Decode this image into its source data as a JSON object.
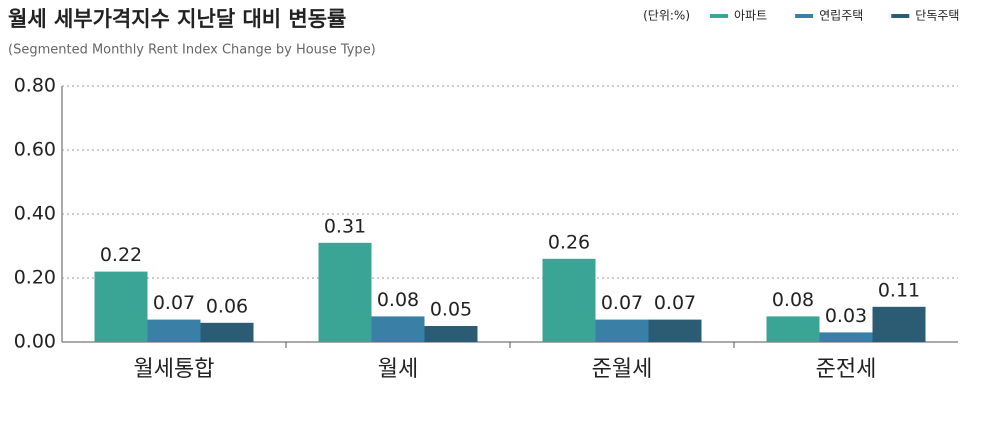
{
  "chart_data": {
    "type": "bar",
    "title": "월세 세부가격지수 지난달 대비 변동률",
    "subtitle": "(Segmented Monthly Rent Index Change by House Type)",
    "unit_label": "(단위:%)",
    "categories": [
      "월세통합",
      "월세",
      "준월세",
      "준전세"
    ],
    "series": [
      {
        "name": "아파트",
        "color": "#3aa594",
        "values": [
          0.22,
          0.31,
          0.26,
          0.08
        ]
      },
      {
        "name": "연립주택",
        "color": "#3a7fa6",
        "values": [
          0.07,
          0.08,
          0.07,
          0.03
        ]
      },
      {
        "name": "단독주택",
        "color": "#2b5c73",
        "values": [
          0.06,
          0.05,
          0.07,
          0.11
        ]
      }
    ],
    "ylim": [
      0,
      0.8
    ],
    "yticks": [
      {
        "value": 0,
        "label": "0.00"
      },
      {
        "value": 0.2,
        "label": "0.20"
      },
      {
        "value": 0.4,
        "label": "0.40"
      },
      {
        "value": 0.6,
        "label": "0.60"
      },
      {
        "value": 0.8,
        "label": "0.80"
      }
    ],
    "grid": true
  }
}
